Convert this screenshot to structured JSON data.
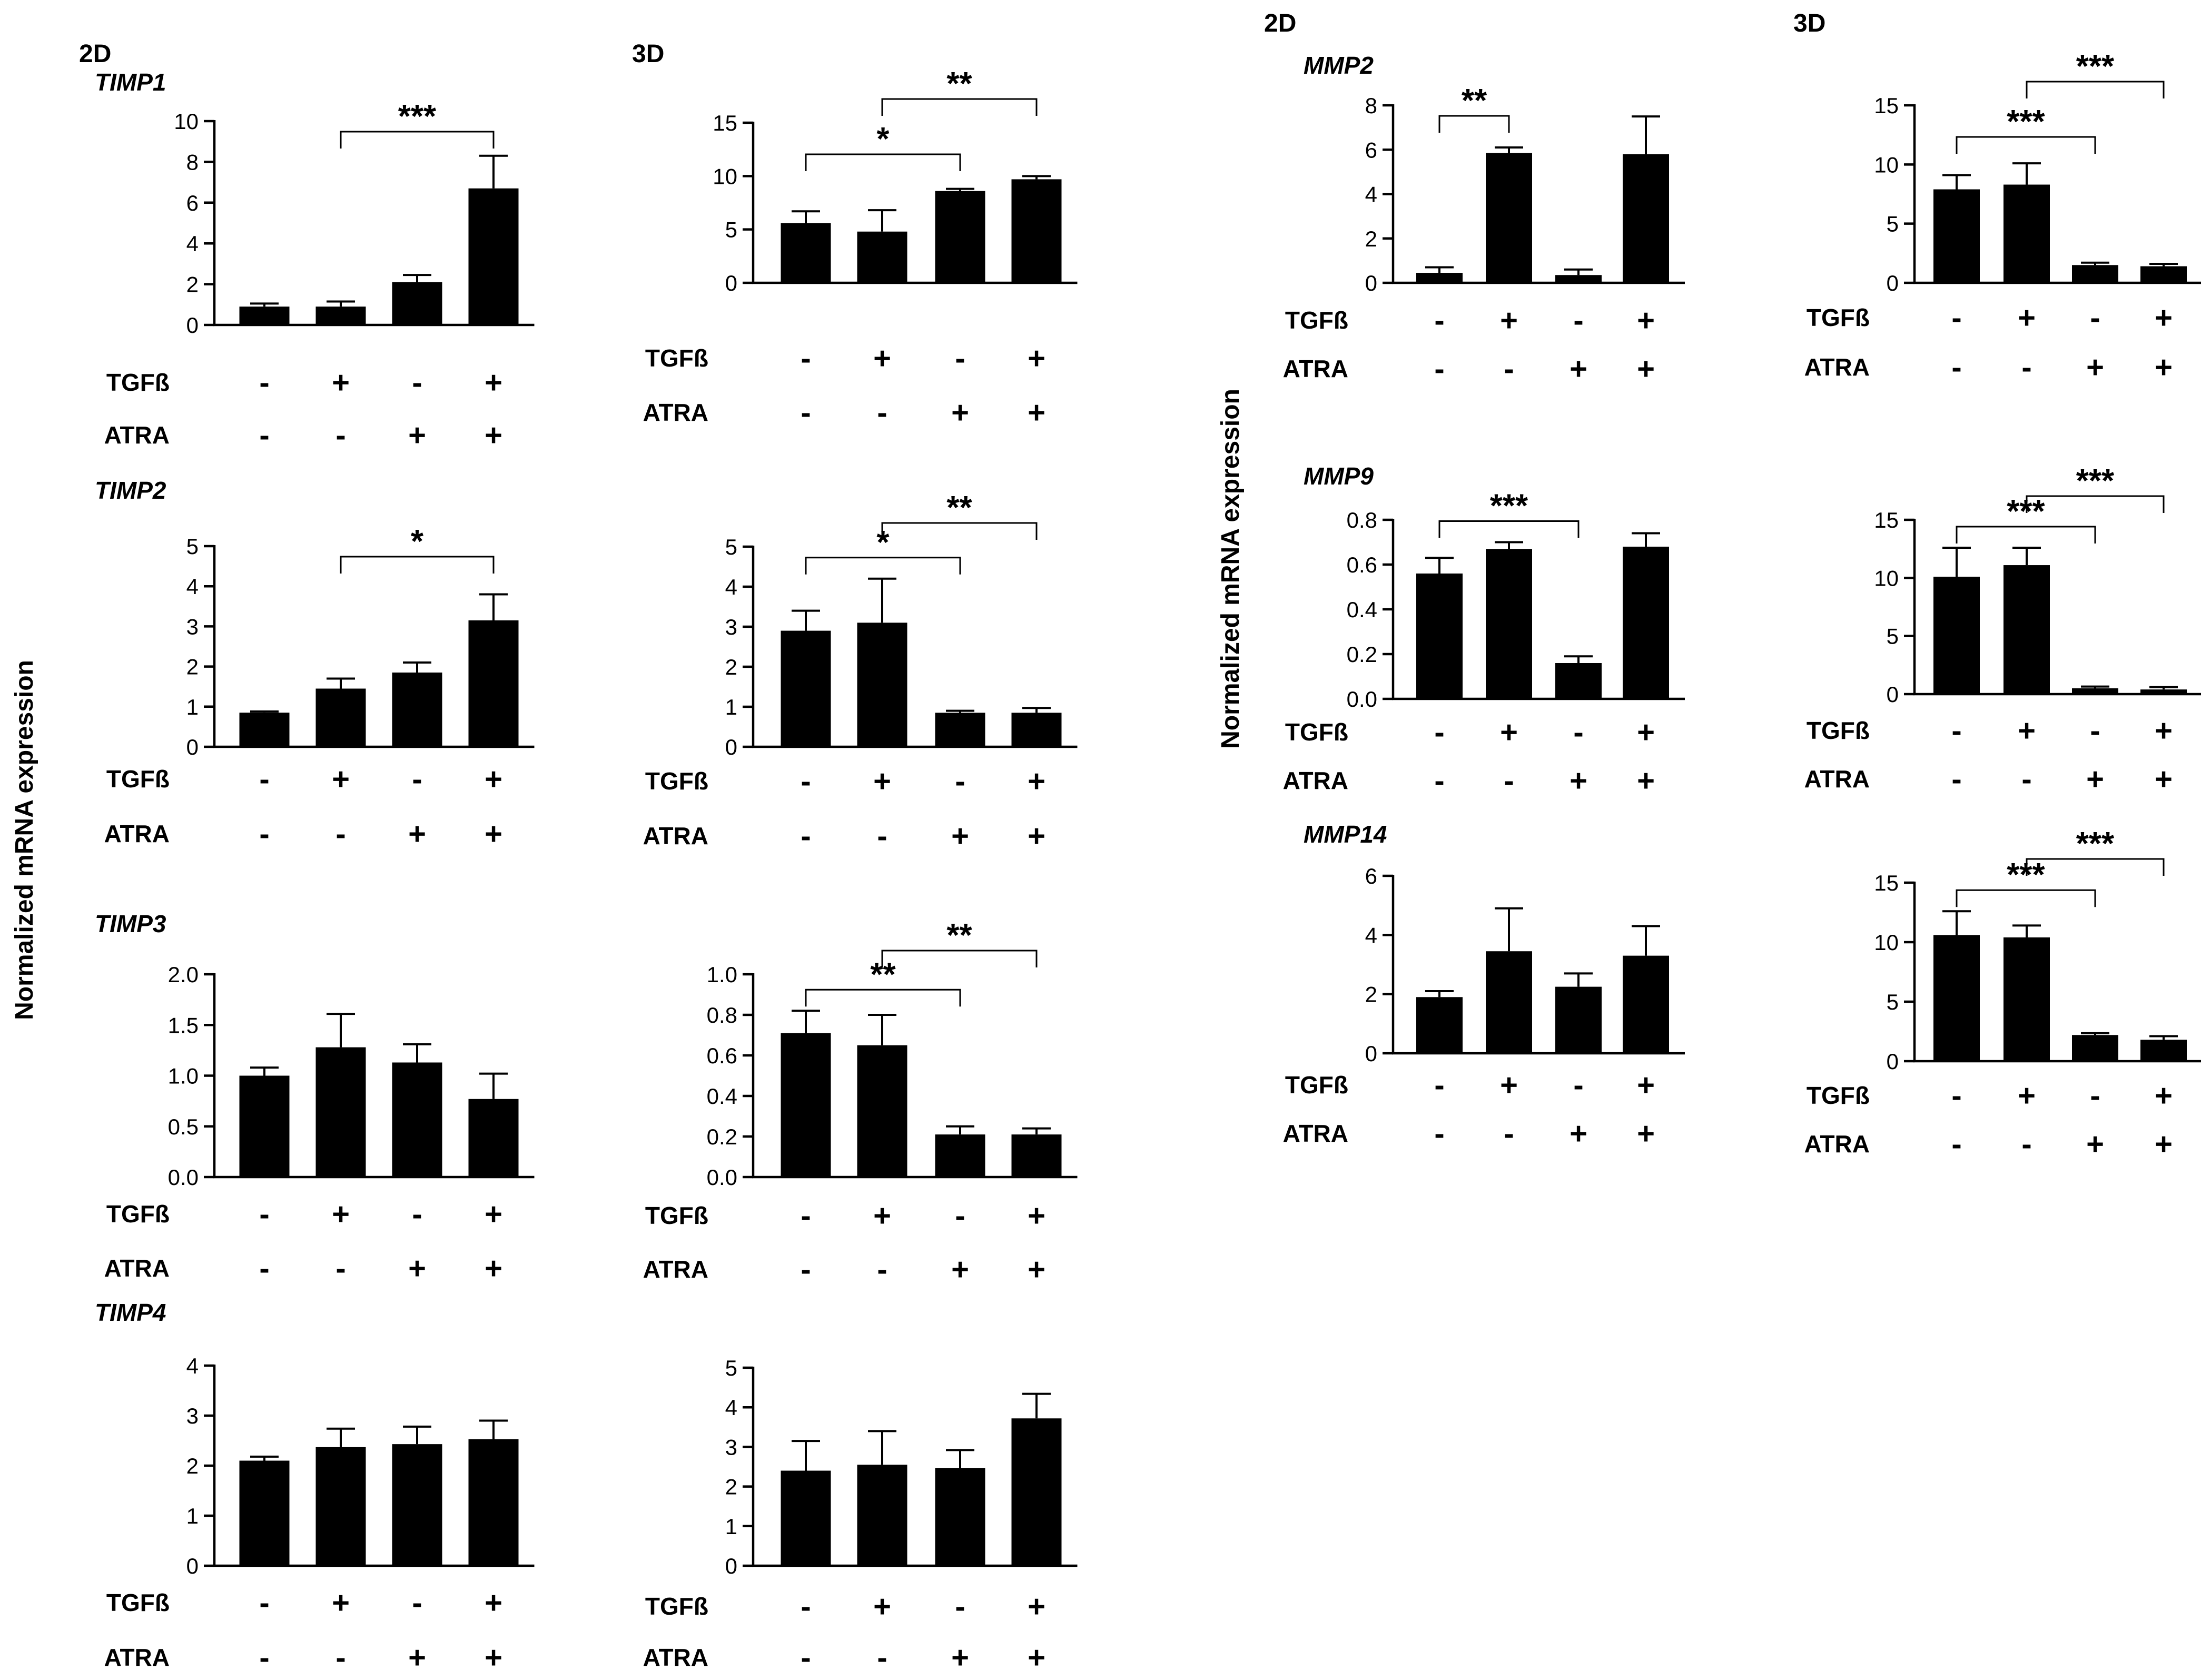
{
  "figure": {
    "y_axis_label": "Normalized mRNA expression",
    "conditions": {
      "TGFb_label": "TGFß",
      "ATRA_label": "ATRA",
      "TGFb": [
        "-",
        "+",
        "-",
        "+"
      ],
      "ATRA": [
        "-",
        "-",
        "+",
        "+"
      ]
    },
    "group_headers": [
      {
        "id": "timp-2d",
        "text": "2D"
      },
      {
        "id": "timp-3d",
        "text": "3D"
      },
      {
        "id": "mmp-2d",
        "text": "2D"
      },
      {
        "id": "mmp-3d",
        "text": "3D"
      }
    ]
  },
  "chart_data": [
    {
      "id": "timp1-2d",
      "type": "bar",
      "title": "TIMP1",
      "culture": "2D",
      "ylim": [
        0,
        10
      ],
      "yticks": [
        "0",
        "2",
        "4",
        "6",
        "8",
        "10"
      ],
      "categories": [
        "-/-",
        "+/-",
        "-/+",
        "+/+"
      ],
      "values": [
        0.9,
        0.9,
        2.1,
        6.7
      ],
      "errors": [
        0.15,
        0.25,
        0.35,
        1.6
      ],
      "significance": [
        {
          "from": 1,
          "to": 3,
          "label": "***"
        }
      ]
    },
    {
      "id": "timp1-3d",
      "type": "bar",
      "title": "",
      "culture": "3D",
      "ylim": [
        0,
        15
      ],
      "yticks": [
        "0",
        "5",
        "10",
        "15"
      ],
      "categories": [
        "-/-",
        "+/-",
        "-/+",
        "+/+"
      ],
      "values": [
        5.6,
        4.8,
        8.6,
        9.7
      ],
      "errors": [
        1.1,
        2.0,
        0.2,
        0.3
      ],
      "significance": [
        {
          "from": 0,
          "to": 2,
          "label": "*"
        },
        {
          "from": 1,
          "to": 3,
          "label": "**"
        }
      ]
    },
    {
      "id": "timp2-2d",
      "type": "bar",
      "title": "TIMP2",
      "culture": "2D",
      "ylim": [
        0,
        5
      ],
      "yticks": [
        "0",
        "1",
        "2",
        "3",
        "4",
        "5"
      ],
      "categories": [
        "-/-",
        "+/-",
        "-/+",
        "+/+"
      ],
      "values": [
        0.85,
        1.45,
        1.85,
        3.15
      ],
      "errors": [
        0.03,
        0.25,
        0.25,
        0.65
      ],
      "significance": [
        {
          "from": 1,
          "to": 3,
          "label": "*"
        }
      ]
    },
    {
      "id": "timp2-3d",
      "type": "bar",
      "title": "",
      "culture": "3D",
      "ylim": [
        0,
        5
      ],
      "yticks": [
        "0",
        "1",
        "2",
        "3",
        "4",
        "5"
      ],
      "categories": [
        "-/-",
        "+/-",
        "-/+",
        "+/+"
      ],
      "values": [
        2.9,
        3.1,
        0.85,
        0.85
      ],
      "errors": [
        0.5,
        1.1,
        0.05,
        0.12
      ],
      "significance": [
        {
          "from": 0,
          "to": 2,
          "label": "*"
        },
        {
          "from": 1,
          "to": 3,
          "label": "**"
        }
      ]
    },
    {
      "id": "timp3-2d",
      "type": "bar",
      "title": "TIMP3",
      "culture": "2D",
      "ylim": [
        0,
        2.0
      ],
      "yticks": [
        "0.0",
        "0.5",
        "1.0",
        "1.5",
        "2.0"
      ],
      "categories": [
        "-/-",
        "+/-",
        "-/+",
        "+/+"
      ],
      "values": [
        1.0,
        1.28,
        1.13,
        0.77
      ],
      "errors": [
        0.08,
        0.33,
        0.18,
        0.25
      ],
      "significance": []
    },
    {
      "id": "timp3-3d",
      "type": "bar",
      "title": "",
      "culture": "3D",
      "ylim": [
        0,
        1.0
      ],
      "yticks": [
        "0.0",
        "0.2",
        "0.4",
        "0.6",
        "0.8",
        "1.0"
      ],
      "categories": [
        "-/-",
        "+/-",
        "-/+",
        "+/+"
      ],
      "values": [
        0.71,
        0.65,
        0.21,
        0.21
      ],
      "errors": [
        0.11,
        0.15,
        0.04,
        0.03
      ],
      "significance": [
        {
          "from": 0,
          "to": 2,
          "label": "**"
        },
        {
          "from": 1,
          "to": 3,
          "label": "**"
        }
      ]
    },
    {
      "id": "timp4-2d",
      "type": "bar",
      "title": "TIMP4",
      "culture": "2D",
      "ylim": [
        0,
        4
      ],
      "yticks": [
        "0",
        "1",
        "2",
        "3",
        "4"
      ],
      "categories": [
        "-/-",
        "+/-",
        "-/+",
        "+/+"
      ],
      "values": [
        2.1,
        2.37,
        2.43,
        2.53
      ],
      "errors": [
        0.08,
        0.37,
        0.35,
        0.37
      ],
      "significance": []
    },
    {
      "id": "timp4-3d",
      "type": "bar",
      "title": "",
      "culture": "3D",
      "ylim": [
        0,
        5
      ],
      "yticks": [
        "0",
        "1",
        "2",
        "3",
        "4",
        "5"
      ],
      "categories": [
        "-/-",
        "+/-",
        "-/+",
        "+/+"
      ],
      "values": [
        2.4,
        2.55,
        2.47,
        3.72
      ],
      "errors": [
        0.75,
        0.85,
        0.45,
        0.62
      ],
      "significance": []
    },
    {
      "id": "mmp2-2d",
      "type": "bar",
      "title": "MMP2",
      "culture": "2D",
      "ylim": [
        0,
        8
      ],
      "yticks": [
        "0",
        "2",
        "4",
        "6",
        "8"
      ],
      "categories": [
        "-/-",
        "+/-",
        "-/+",
        "+/+"
      ],
      "values": [
        0.45,
        5.85,
        0.35,
        5.8
      ],
      "errors": [
        0.25,
        0.25,
        0.25,
        1.7
      ],
      "significance": [
        {
          "from": 0,
          "to": 1,
          "label": "**"
        }
      ]
    },
    {
      "id": "mmp2-3d",
      "type": "bar",
      "title": "",
      "culture": "3D",
      "ylim": [
        0,
        15
      ],
      "yticks": [
        "0",
        "5",
        "10",
        "15"
      ],
      "categories": [
        "-/-",
        "+/-",
        "-/+",
        "+/+"
      ],
      "values": [
        7.9,
        8.3,
        1.5,
        1.4
      ],
      "errors": [
        1.2,
        1.8,
        0.2,
        0.2
      ],
      "significance": [
        {
          "from": 0,
          "to": 2,
          "label": "***"
        },
        {
          "from": 1,
          "to": 3,
          "label": "***"
        }
      ]
    },
    {
      "id": "mmp9-2d",
      "type": "bar",
      "title": "MMP9",
      "culture": "2D",
      "ylim": [
        0,
        0.8
      ],
      "yticks": [
        "0.0",
        "0.2",
        "0.4",
        "0.6",
        "0.8"
      ],
      "categories": [
        "-/-",
        "+/-",
        "-/+",
        "+/+"
      ],
      "values": [
        0.56,
        0.67,
        0.16,
        0.68
      ],
      "errors": [
        0.07,
        0.03,
        0.03,
        0.06
      ],
      "significance": [
        {
          "from": 0,
          "to": 2,
          "label": "***"
        }
      ]
    },
    {
      "id": "mmp9-3d",
      "type": "bar",
      "title": "",
      "culture": "3D",
      "ylim": [
        0,
        15
      ],
      "yticks": [
        "0",
        "5",
        "10",
        "15"
      ],
      "categories": [
        "-/-",
        "+/-",
        "-/+",
        "+/+"
      ],
      "values": [
        10.1,
        11.1,
        0.5,
        0.4
      ],
      "errors": [
        2.5,
        1.5,
        0.15,
        0.2
      ],
      "significance": [
        {
          "from": 0,
          "to": 2,
          "label": "***"
        },
        {
          "from": 1,
          "to": 3,
          "label": "***"
        }
      ]
    },
    {
      "id": "mmp14-2d",
      "type": "bar",
      "title": "MMP14",
      "culture": "2D",
      "ylim": [
        0,
        6
      ],
      "yticks": [
        "0",
        "2",
        "4",
        "6"
      ],
      "categories": [
        "-/-",
        "+/-",
        "-/+",
        "+/+"
      ],
      "values": [
        1.9,
        3.45,
        2.25,
        3.3
      ],
      "errors": [
        0.2,
        1.45,
        0.45,
        1.0
      ],
      "significance": []
    },
    {
      "id": "mmp14-3d",
      "type": "bar",
      "title": "",
      "culture": "3D",
      "ylim": [
        0,
        15
      ],
      "yticks": [
        "0",
        "5",
        "10",
        "15"
      ],
      "categories": [
        "-/-",
        "+/-",
        "-/+",
        "+/+"
      ],
      "values": [
        10.6,
        10.4,
        2.2,
        1.8
      ],
      "errors": [
        2.0,
        1.0,
        0.15,
        0.3
      ],
      "significance": [
        {
          "from": 0,
          "to": 2,
          "label": "***"
        },
        {
          "from": 1,
          "to": 3,
          "label": "***"
        }
      ]
    }
  ]
}
